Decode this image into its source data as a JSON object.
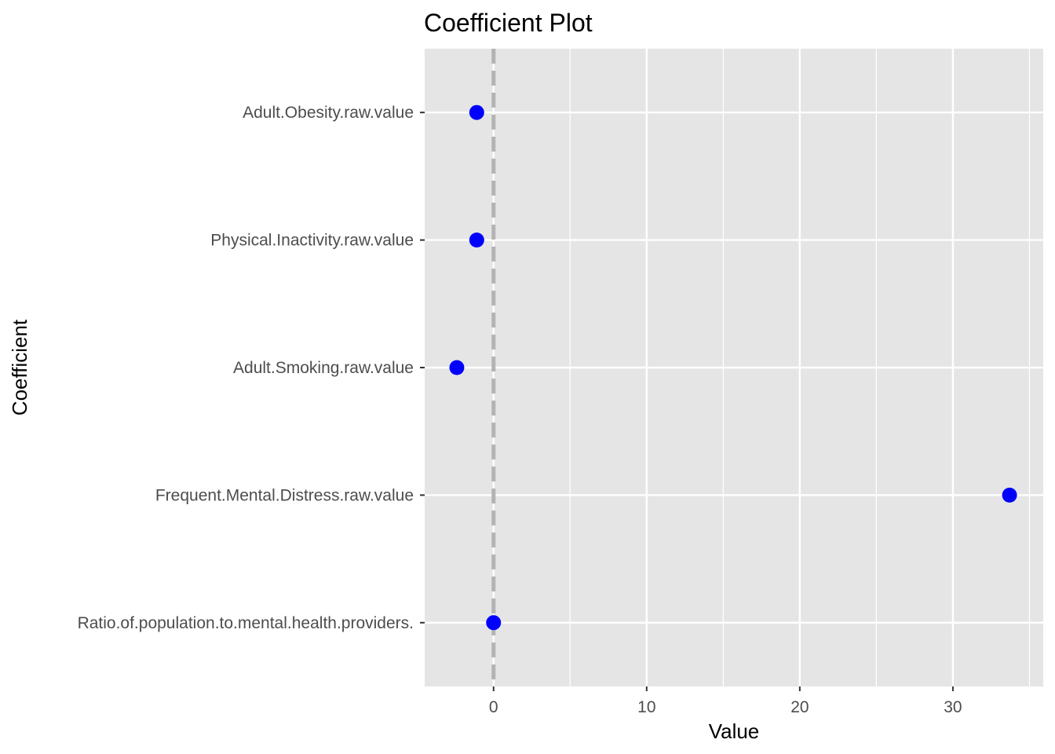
{
  "chart_data": {
    "type": "scatter",
    "title": "Coefficient Plot",
    "xlabel": "Value",
    "ylabel": "Coefficient",
    "xlim": [
      -4.5,
      35.9
    ],
    "x_ticks": [
      0,
      10,
      20,
      30
    ],
    "reference_line": {
      "x": 0,
      "style": "dashed"
    },
    "grid": true,
    "colors": {
      "point": "#0000ff",
      "panel": "#e5e5e5",
      "grid": "#ffffff",
      "reference_line": "#b3b3b3"
    },
    "categories": [
      "Adult.Obesity.raw.value",
      "Physical.Inactivity.raw.value",
      "Adult.Smoking.raw.value",
      "Frequent.Mental.Distress.raw.value",
      "Ratio.of.population.to.mental.health.providers."
    ],
    "values": [
      -1.1,
      -1.1,
      -2.4,
      33.7,
      0.0
    ]
  }
}
